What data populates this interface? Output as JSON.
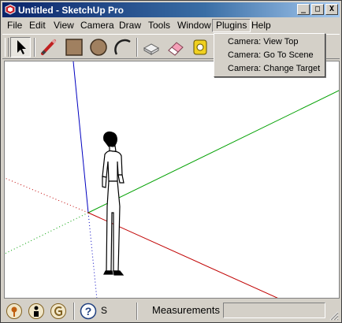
{
  "window": {
    "title": "Untitled - SketchUp Pro",
    "icon": "sketchup-app-icon",
    "controls": {
      "minimize": "_",
      "maximize": "□",
      "close": "X"
    }
  },
  "menubar": {
    "items": [
      {
        "label": "File"
      },
      {
        "label": "Edit"
      },
      {
        "label": "View"
      },
      {
        "label": "Camera"
      },
      {
        "label": "Draw"
      },
      {
        "label": "Tools"
      },
      {
        "label": "Window"
      },
      {
        "label": "Plugins",
        "open": true
      },
      {
        "label": "Help"
      }
    ]
  },
  "plugins_menu": {
    "items": [
      {
        "label": "Camera: View Top"
      },
      {
        "label": "Camera: Go To Scene"
      },
      {
        "label": "Camera: Change Target"
      }
    ]
  },
  "toolbar": {
    "tools": [
      {
        "name": "select-icon",
        "active": true
      },
      {
        "name": "pencil-icon"
      },
      {
        "name": "rectangle-icon"
      },
      {
        "name": "circle-icon"
      },
      {
        "name": "arc-icon"
      },
      {
        "name": "make-component-icon"
      },
      {
        "name": "eraser-icon"
      },
      {
        "name": "tape-measure-icon"
      }
    ]
  },
  "viewport": {
    "axes": {
      "red": "#c00000",
      "green": "#00a000",
      "blue": "#0000c0"
    },
    "model": "scale-figure-person"
  },
  "statusbar": {
    "icons": [
      "geo-location-icon",
      "credits-icon",
      "sign-in-icon",
      "instructor-help-icon"
    ],
    "hint": "S",
    "measurements_label": "Measurements",
    "measurements_value": ""
  }
}
